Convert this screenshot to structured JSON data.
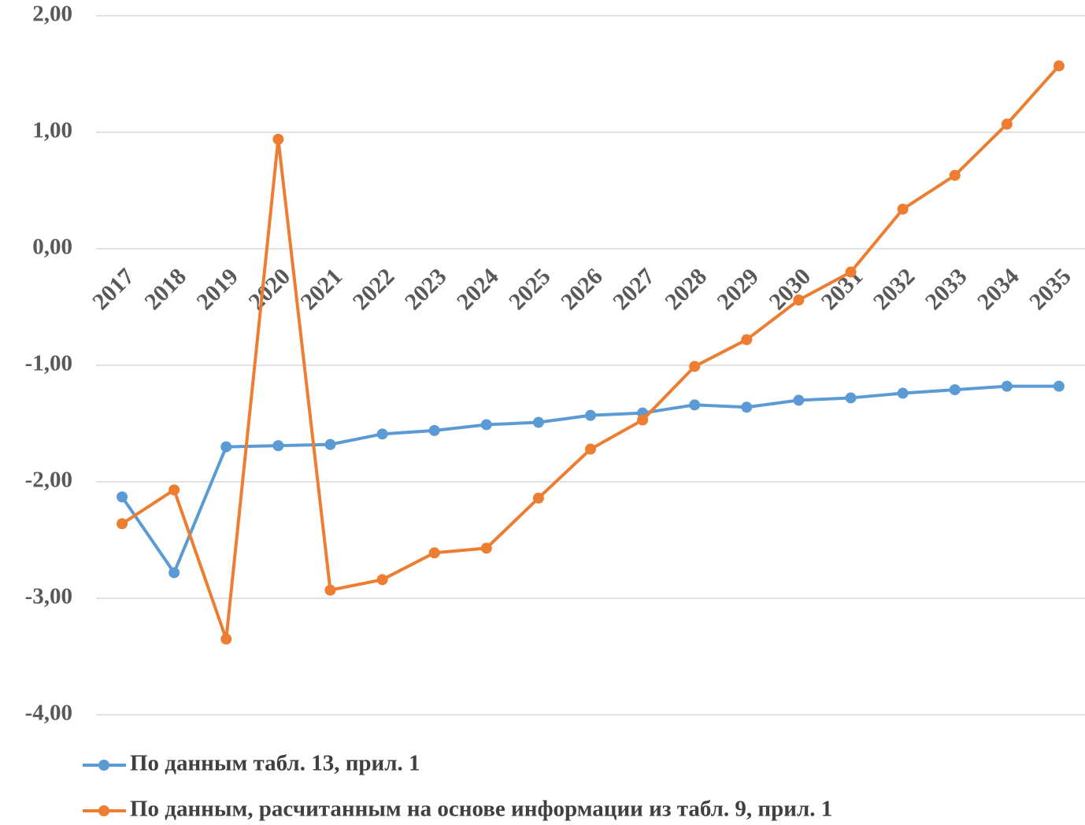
{
  "chart_data": {
    "type": "line",
    "categories": [
      "2017",
      "2018",
      "2019",
      "2020",
      "2021",
      "2022",
      "2023",
      "2024",
      "2025",
      "2026",
      "2027",
      "2028",
      "2029",
      "2030",
      "2031",
      "2032",
      "2033",
      "2034",
      "2035"
    ],
    "series": [
      {
        "name": "По данным табл. 13, прил. 1",
        "color": "#5b9bd5",
        "values": [
          -2.13,
          -2.78,
          -1.7,
          -1.69,
          -1.68,
          -1.59,
          -1.56,
          -1.51,
          -1.49,
          -1.43,
          -1.41,
          -1.34,
          -1.36,
          -1.3,
          -1.28,
          -1.24,
          -1.21,
          -1.18,
          -1.18
        ]
      },
      {
        "name": "По данным, расчитанным на основе информации из табл. 9, прил. 1",
        "color": "#ed7d31",
        "values": [
          -2.36,
          -2.07,
          -3.35,
          0.94,
          -2.93,
          -2.84,
          -2.61,
          -2.57,
          -2.14,
          -1.72,
          -1.47,
          -1.01,
          -0.78,
          -0.44,
          -0.2,
          0.34,
          0.63,
          1.07,
          1.57
        ]
      }
    ],
    "ylim": [
      -4,
      2
    ],
    "yticks": [
      {
        "value": 2,
        "label": "2,00"
      },
      {
        "value": 1,
        "label": "1,00"
      },
      {
        "value": 0,
        "label": "0,00"
      },
      {
        "value": -1,
        "label": "-1,00"
      },
      {
        "value": -2,
        "label": "-2,00"
      },
      {
        "value": -3,
        "label": "-3,00"
      },
      {
        "value": -4,
        "label": "-4,00"
      }
    ],
    "grid": true,
    "legend": "bottom"
  }
}
